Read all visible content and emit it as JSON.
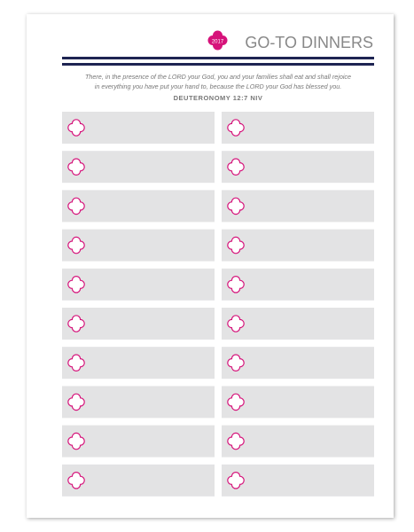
{
  "header": {
    "badge": "2017",
    "title": "GO-TO DINNERS"
  },
  "verse": {
    "lines": [
      "There, in the presence of the LORD your God, you and your families shall eat and shall rejoice",
      "in everything you have put your hand to, because the LORD your God has blessed you."
    ],
    "reference": "DEUTERONOMY 12:7 NIV"
  }
}
